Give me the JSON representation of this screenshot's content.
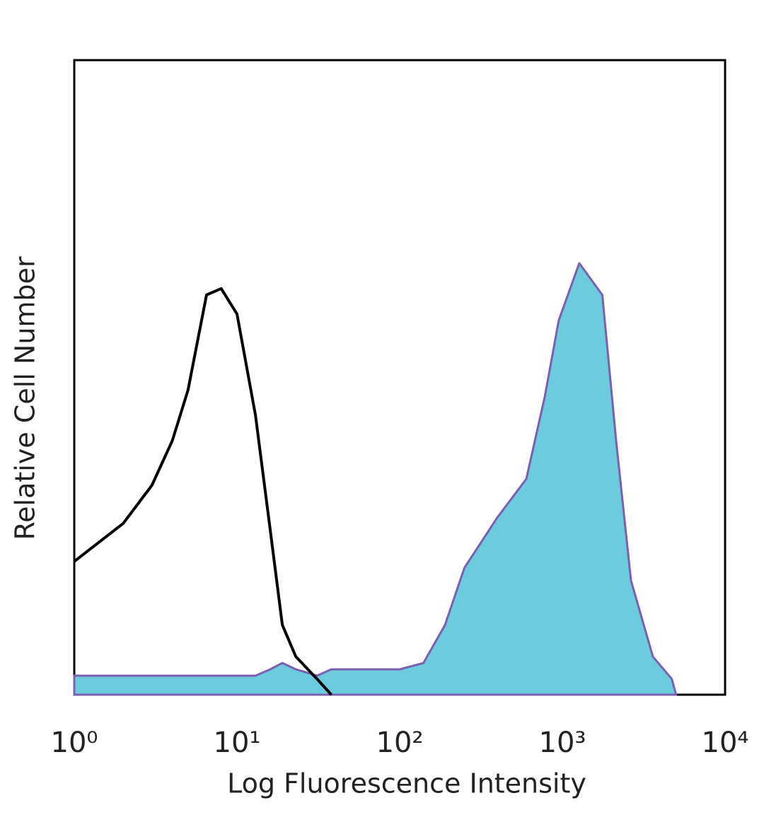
{
  "chart_data": {
    "type": "area",
    "x_label": "Log Fluorescence Intensity",
    "y_label": "Relative Cell Number",
    "xscale": "log",
    "xlim": [
      1,
      10000
    ],
    "xticks": [
      {
        "value": 1,
        "label": "10⁰"
      },
      {
        "value": 10,
        "label": "10¹"
      },
      {
        "value": 100,
        "label": "10²"
      },
      {
        "value": 1000,
        "label": "10³"
      },
      {
        "value": 10000,
        "label": "10⁴"
      }
    ],
    "ylim": [
      0,
      100
    ],
    "grid": false,
    "x": [
      1,
      2,
      3,
      4,
      5,
      6.5,
      8,
      10,
      13,
      16,
      19,
      23,
      31,
      38,
      60,
      100,
      140,
      190,
      250,
      400,
      600,
      780,
      950,
      1270,
      1760,
      2140,
      2640,
      3600,
      4700,
      5000
    ],
    "series": [
      {
        "color": "#7b5fb0",
        "fill_color": "#6ccbdc",
        "fill": true,
        "values": [
          3,
          3,
          3,
          3,
          3,
          3,
          3,
          3,
          3,
          4,
          5,
          4,
          3,
          4,
          4,
          4,
          5,
          11,
          20,
          28,
          34,
          47,
          59,
          68,
          63,
          40,
          18,
          6,
          2.5,
          0
        ]
      },
      {
        "color": "#000000",
        "fill": false,
        "values": [
          21,
          27,
          33,
          40,
          48,
          63,
          64,
          60,
          44,
          26,
          11,
          6,
          2.5,
          0,
          null,
          null,
          null,
          null,
          null,
          null,
          null,
          null,
          null,
          null,
          null,
          null,
          null,
          null,
          null,
          null
        ]
      }
    ]
  }
}
